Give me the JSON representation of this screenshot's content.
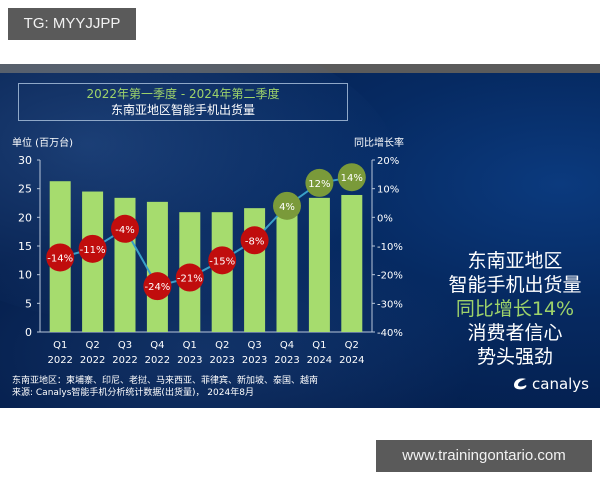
{
  "watermarks": {
    "top_left": "TG: MYYJJPP",
    "bottom_right": "www.trainingontario.com"
  },
  "chart_header": {
    "period": "2022年第一季度 - 2024年第二季度",
    "title": "东南亚地区智能手机出货量"
  },
  "axes": {
    "left_label": "单位 (百万台)",
    "right_label": "同比增长率",
    "left_ticks": [
      "0",
      "5",
      "10",
      "15",
      "20",
      "25",
      "30"
    ],
    "right_ticks": [
      "-40%",
      "-30%",
      "-20%",
      "-10%",
      "0%",
      "10%",
      "20%"
    ]
  },
  "quarters": [
    {
      "q": "Q1",
      "y": "2022"
    },
    {
      "q": "Q2",
      "y": "2022"
    },
    {
      "q": "Q3",
      "y": "2022"
    },
    {
      "q": "Q4",
      "y": "2022"
    },
    {
      "q": "Q1",
      "y": "2023"
    },
    {
      "q": "Q2",
      "y": "2023"
    },
    {
      "q": "Q3",
      "y": "2023"
    },
    {
      "q": "Q4",
      "y": "2023"
    },
    {
      "q": "Q1",
      "y": "2024"
    },
    {
      "q": "Q2",
      "y": "2024"
    }
  ],
  "growth_labels": [
    "-14%",
    "-11%",
    "-4%",
    "-24%",
    "-21%",
    "-15%",
    "-8%",
    "4%",
    "12%",
    "14%"
  ],
  "footnotes": {
    "region": "东南亚地区：柬埔寨、印尼、老挝、马来西亚、菲律宾、新加坡、泰国、越南",
    "source": "来源: Canalys智能手机分析统计数据(出货量)， 2024年8月"
  },
  "headline": {
    "line1": "东南亚地区",
    "line2": "智能手机出货量",
    "line3": "同比增长14%",
    "line4": "消费者信心",
    "line5": "势头强劲"
  },
  "logo": {
    "text": "canalys",
    "icon": "canalys-swirl-icon"
  },
  "colors": {
    "bar": "#a6dc6e",
    "negative_bubble": "#c00d0d",
    "positive_bubble": "#7a9a3a",
    "line": "#3aa0c8",
    "background": "#062a62",
    "highlight_text": "#9ed36a"
  },
  "chart_data": {
    "type": "bar+line",
    "title": "东南亚地区智能手机出货量",
    "subtitle": "2022年第一季度 - 2024年第二季度",
    "categories": [
      "Q1 2022",
      "Q2 2022",
      "Q3 2022",
      "Q4 2022",
      "Q1 2023",
      "Q2 2023",
      "Q3 2023",
      "Q4 2023",
      "Q1 2024",
      "Q2 2024"
    ],
    "series": [
      {
        "name": "出货量 (百万台)",
        "type": "bar",
        "axis": "left",
        "values": [
          26.3,
          24.5,
          23.4,
          22.7,
          20.9,
          20.9,
          21.6,
          22.6,
          23.4,
          23.9
        ]
      },
      {
        "name": "同比增长率",
        "type": "line",
        "axis": "right",
        "values": [
          -14,
          -11,
          -4,
          -24,
          -21,
          -15,
          -8,
          4,
          12,
          14
        ]
      }
    ],
    "ylabel": "单位 (百万台)",
    "y2label": "同比增长率",
    "ylim": [
      0,
      30
    ],
    "y2lim": [
      -40,
      20
    ],
    "grid": false,
    "legend": "none"
  }
}
